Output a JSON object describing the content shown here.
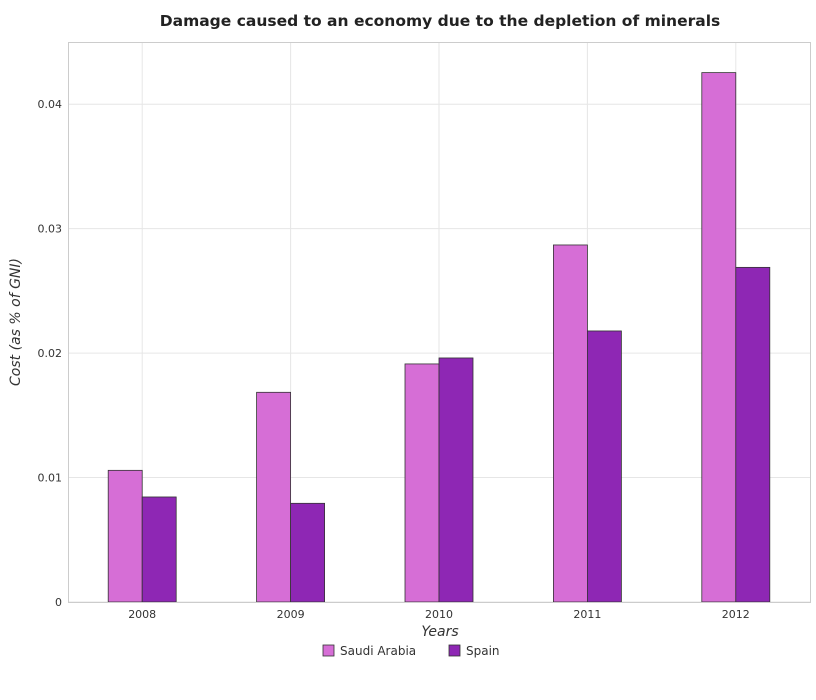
{
  "chart_data": {
    "type": "bar",
    "title": "Damage caused to an economy due to the depletion of minerals",
    "xlabel": "Years",
    "ylabel": "Cost (as % of GNI)",
    "categories": [
      "2008",
      "2009",
      "2010",
      "2011",
      "2012"
    ],
    "series": [
      {
        "name": "Saudi Arabia",
        "color": "#d66ed6",
        "values": [
          0.01058,
          0.01685,
          0.01913,
          0.02869,
          0.04254
        ]
      },
      {
        "name": "Spain",
        "color": "#8e27b4",
        "values": [
          0.00844,
          0.00793,
          0.01961,
          0.02178,
          0.02689
        ]
      }
    ],
    "ylim": [
      0,
      0.045
    ],
    "yticks": [
      "0",
      "0.01",
      "0.02",
      "0.03",
      "0.04"
    ],
    "grid": true,
    "legend_position": "bottom-center"
  }
}
